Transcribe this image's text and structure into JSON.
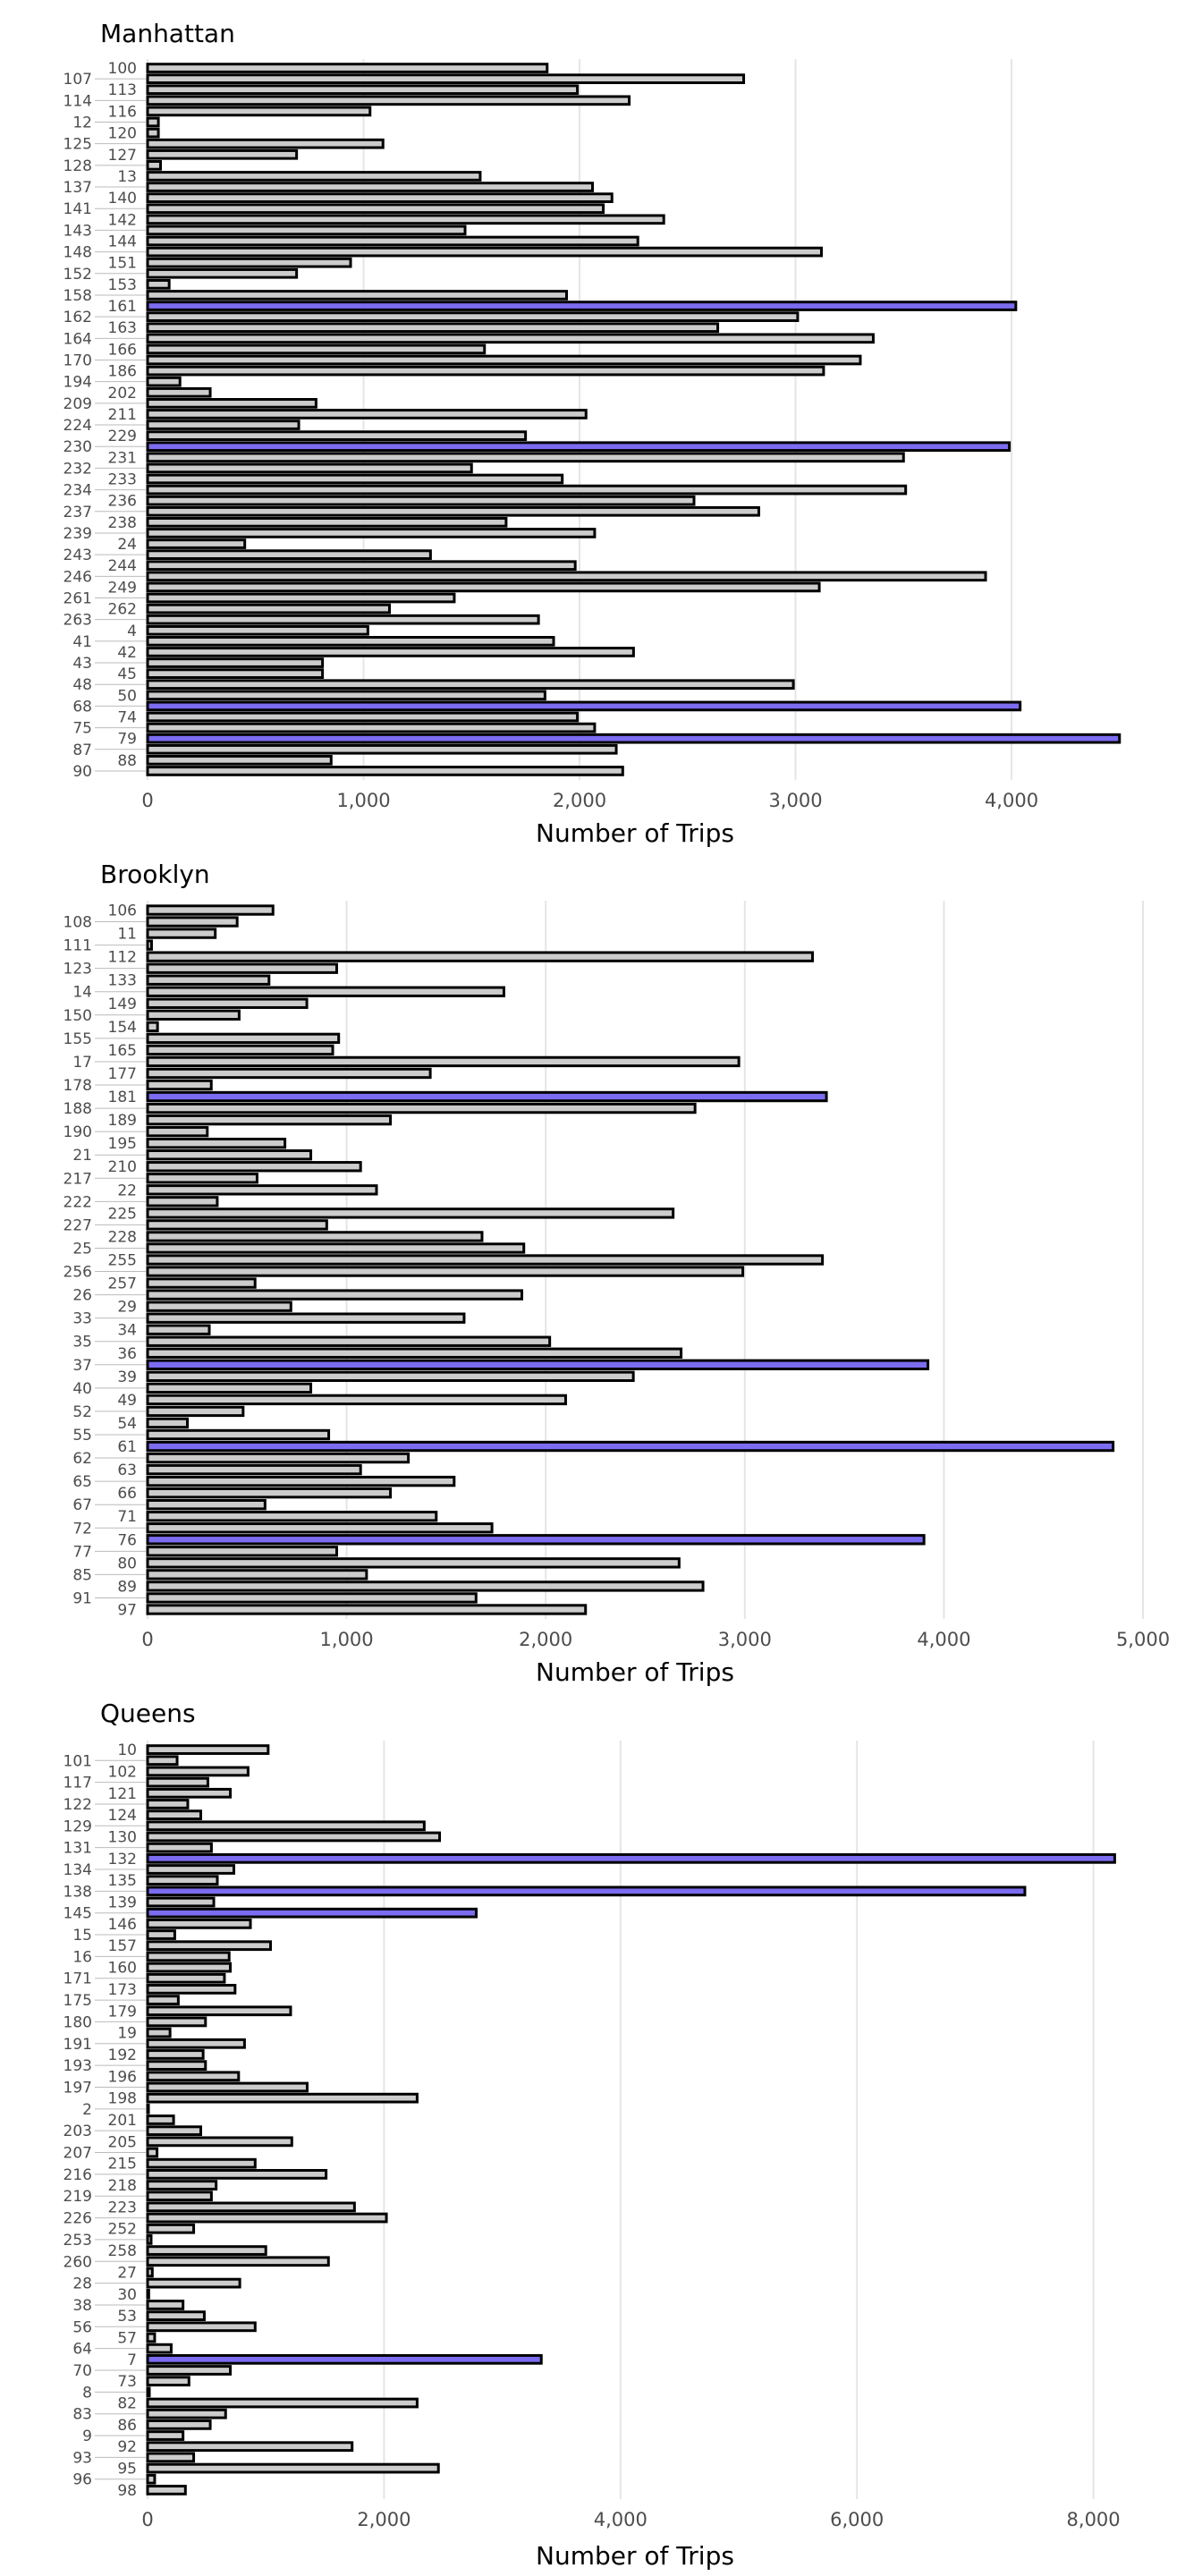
{
  "chart_data": [
    {
      "type": "bar",
      "orientation": "horizontal",
      "title": "Manhattan",
      "xlabel": "Number of Trips",
      "ylabel": "",
      "xlim": [
        0,
        4700
      ],
      "xticks": [
        0,
        1000,
        2000,
        3000,
        4000
      ],
      "xtick_labels": [
        "0",
        "1,000",
        "2,000",
        "3,000",
        "4,000"
      ],
      "grid": true,
      "categories": [
        "100",
        "107",
        "113",
        "114",
        "116",
        "12",
        "120",
        "125",
        "127",
        "128",
        "13",
        "137",
        "140",
        "141",
        "142",
        "143",
        "144",
        "148",
        "151",
        "152",
        "153",
        "158",
        "161",
        "162",
        "163",
        "164",
        "166",
        "170",
        "186",
        "194",
        "202",
        "209",
        "211",
        "224",
        "229",
        "230",
        "231",
        "232",
        "233",
        "234",
        "236",
        "237",
        "238",
        "239",
        "24",
        "243",
        "244",
        "246",
        "249",
        "261",
        "262",
        "263",
        "4",
        "41",
        "42",
        "43",
        "45",
        "48",
        "50",
        "68",
        "74",
        "75",
        "79",
        "87",
        "88",
        "90"
      ],
      "values": [
        1850,
        2760,
        1990,
        2230,
        1030,
        50,
        50,
        1090,
        690,
        60,
        1540,
        2060,
        2150,
        2110,
        2390,
        1470,
        2270,
        3120,
        940,
        690,
        100,
        1940,
        4020,
        3010,
        2640,
        3360,
        1560,
        3300,
        3130,
        150,
        290,
        780,
        2030,
        700,
        1750,
        3990,
        3500,
        1500,
        1920,
        3510,
        2530,
        2830,
        1660,
        2070,
        450,
        1310,
        1980,
        3880,
        3110,
        1420,
        1120,
        1810,
        1020,
        1880,
        2250,
        810,
        810,
        2990,
        1840,
        4040,
        1990,
        2070,
        4500,
        2170,
        850,
        2200
      ],
      "highlighted": [
        "161",
        "230",
        "68",
        "79"
      ]
    },
    {
      "type": "bar",
      "orientation": "horizontal",
      "title": "Brooklyn",
      "xlabel": "Number of Trips",
      "ylabel": "",
      "xlim": [
        0,
        5000
      ],
      "xticks": [
        0,
        1000,
        2000,
        3000,
        4000,
        5000
      ],
      "xtick_labels": [
        "0",
        "1,000",
        "2,000",
        "3,000",
        "4,000",
        "5,000"
      ],
      "grid": true,
      "categories": [
        "106",
        "108",
        "11",
        "111",
        "112",
        "123",
        "133",
        "14",
        "149",
        "150",
        "154",
        "155",
        "165",
        "17",
        "177",
        "178",
        "181",
        "188",
        "189",
        "190",
        "195",
        "21",
        "210",
        "217",
        "22",
        "222",
        "225",
        "227",
        "228",
        "25",
        "255",
        "256",
        "257",
        "26",
        "29",
        "33",
        "34",
        "35",
        "36",
        "37",
        "39",
        "40",
        "49",
        "52",
        "54",
        "55",
        "61",
        "62",
        "63",
        "65",
        "66",
        "67",
        "71",
        "72",
        "76",
        "77",
        "80",
        "85",
        "89",
        "91",
        "97"
      ],
      "values": [
        630,
        450,
        340,
        20,
        3340,
        950,
        610,
        1790,
        800,
        460,
        50,
        960,
        930,
        2970,
        1420,
        320,
        3410,
        2750,
        1220,
        300,
        690,
        820,
        1070,
        550,
        1150,
        350,
        2640,
        900,
        1680,
        1890,
        3390,
        2990,
        540,
        1880,
        720,
        1590,
        310,
        2020,
        2680,
        3920,
        2440,
        820,
        2100,
        480,
        200,
        910,
        4850,
        1310,
        1070,
        1540,
        1220,
        590,
        1450,
        1730,
        3900,
        950,
        2670,
        1100,
        2790,
        1650,
        2200
      ],
      "highlighted": [
        "181",
        "37",
        "61",
        "76"
      ]
    },
    {
      "type": "bar",
      "orientation": "horizontal",
      "title": "Queens",
      "xlabel": "Number of Trips",
      "ylabel": "",
      "xlim": [
        0,
        8600
      ],
      "xticks": [
        0,
        2000,
        4000,
        6000,
        8000
      ],
      "xtick_labels": [
        "0",
        "2,000",
        "4,000",
        "6,000",
        "8,000"
      ],
      "grid": true,
      "categories": [
        "10",
        "101",
        "102",
        "117",
        "121",
        "122",
        "124",
        "129",
        "130",
        "131",
        "132",
        "134",
        "135",
        "138",
        "139",
        "145",
        "146",
        "15",
        "157",
        "16",
        "160",
        "171",
        "173",
        "175",
        "179",
        "180",
        "19",
        "191",
        "192",
        "193",
        "196",
        "197",
        "198",
        "2",
        "201",
        "203",
        "205",
        "207",
        "215",
        "216",
        "218",
        "219",
        "223",
        "226",
        "252",
        "253",
        "258",
        "260",
        "27",
        "28",
        "30",
        "38",
        "53",
        "56",
        "57",
        "64",
        "7",
        "70",
        "73",
        "8",
        "82",
        "83",
        "86",
        "9",
        "92",
        "93",
        "95",
        "96",
        "98"
      ],
      "values": [
        1020,
        250,
        850,
        510,
        700,
        340,
        450,
        2340,
        2470,
        540,
        8180,
        730,
        590,
        7420,
        560,
        2780,
        870,
        230,
        1040,
        690,
        700,
        650,
        740,
        260,
        1210,
        490,
        190,
        820,
        470,
        490,
        770,
        1350,
        2280,
        5,
        220,
        450,
        1220,
        80,
        910,
        1510,
        580,
        540,
        1750,
        2020,
        390,
        30,
        1000,
        1530,
        40,
        780,
        10,
        300,
        480,
        910,
        60,
        200,
        3330,
        700,
        350,
        15,
        2280,
        660,
        530,
        300,
        1730,
        390,
        2460,
        60,
        320
      ],
      "highlighted": [
        "132",
        "138",
        "145",
        "7"
      ]
    }
  ],
  "colors": {
    "bar": "#cccccc",
    "highlight": "#7b6cf0",
    "outline": "#000000",
    "grid": "#e5e5e5",
    "tick_text": "#4d4d4d"
  }
}
